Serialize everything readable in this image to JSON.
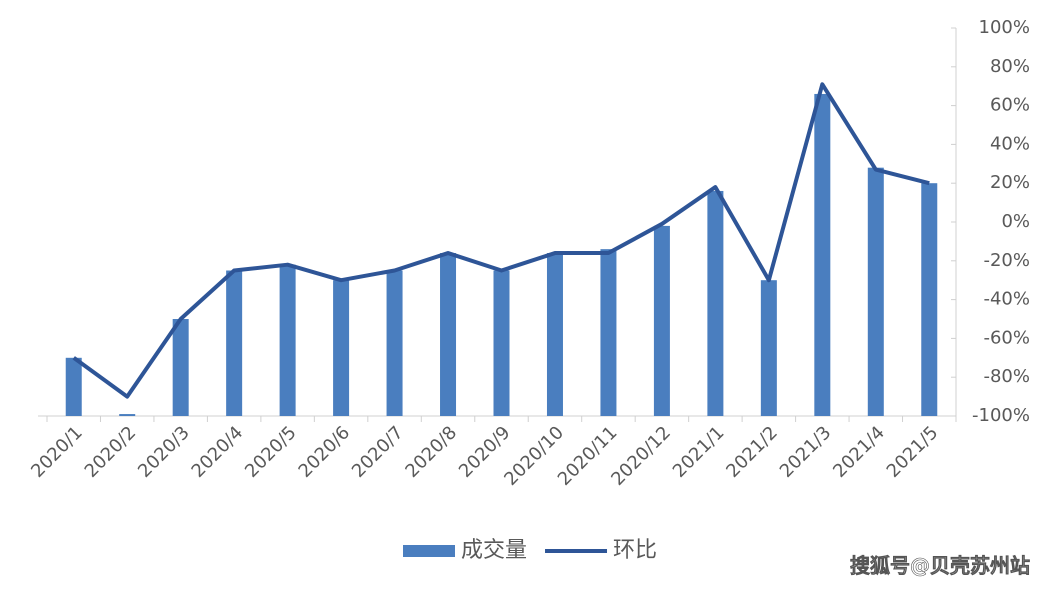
{
  "chart_data": {
    "type": "bar_line",
    "categories": [
      "2020/1",
      "2020/2",
      "2020/3",
      "2020/4",
      "2020/5",
      "2020/6",
      "2020/7",
      "2020/8",
      "2020/9",
      "2020/10",
      "2020/11",
      "2020/12",
      "2021/1",
      "2021/2",
      "2021/3",
      "2021/4",
      "2021/5"
    ],
    "series": [
      {
        "name": "成交量",
        "type": "bar",
        "color": "#4a7ebf",
        "values": [
          -70,
          -99,
          -50,
          -25,
          -22,
          -30,
          -25,
          -16,
          -25,
          -16,
          -14,
          -2,
          16,
          -30,
          66,
          28,
          20
        ]
      },
      {
        "name": "环比",
        "type": "line",
        "color": "#2e5597",
        "values": [
          -70,
          -90,
          -50,
          -25,
          -22,
          -30,
          -25,
          -16,
          -25,
          -16,
          -16,
          -1,
          18,
          -30,
          71,
          27,
          20
        ]
      }
    ],
    "ylim": [
      -100,
      100
    ],
    "yticks": [
      {
        "value": -100,
        "label": "-100%"
      },
      {
        "value": -80,
        "label": "-80%"
      },
      {
        "value": -60,
        "label": "-60%"
      },
      {
        "value": -40,
        "label": "-40%"
      },
      {
        "value": -20,
        "label": "-20%"
      },
      {
        "value": 0,
        "label": "0%"
      },
      {
        "value": 20,
        "label": "20%"
      },
      {
        "value": 40,
        "label": "40%"
      },
      {
        "value": 60,
        "label": "60%"
      },
      {
        "value": 80,
        "label": "80%"
      },
      {
        "value": 100,
        "label": "100%"
      }
    ],
    "legend": "bottom",
    "watermark": "搜狐号@贝壳苏州站"
  }
}
